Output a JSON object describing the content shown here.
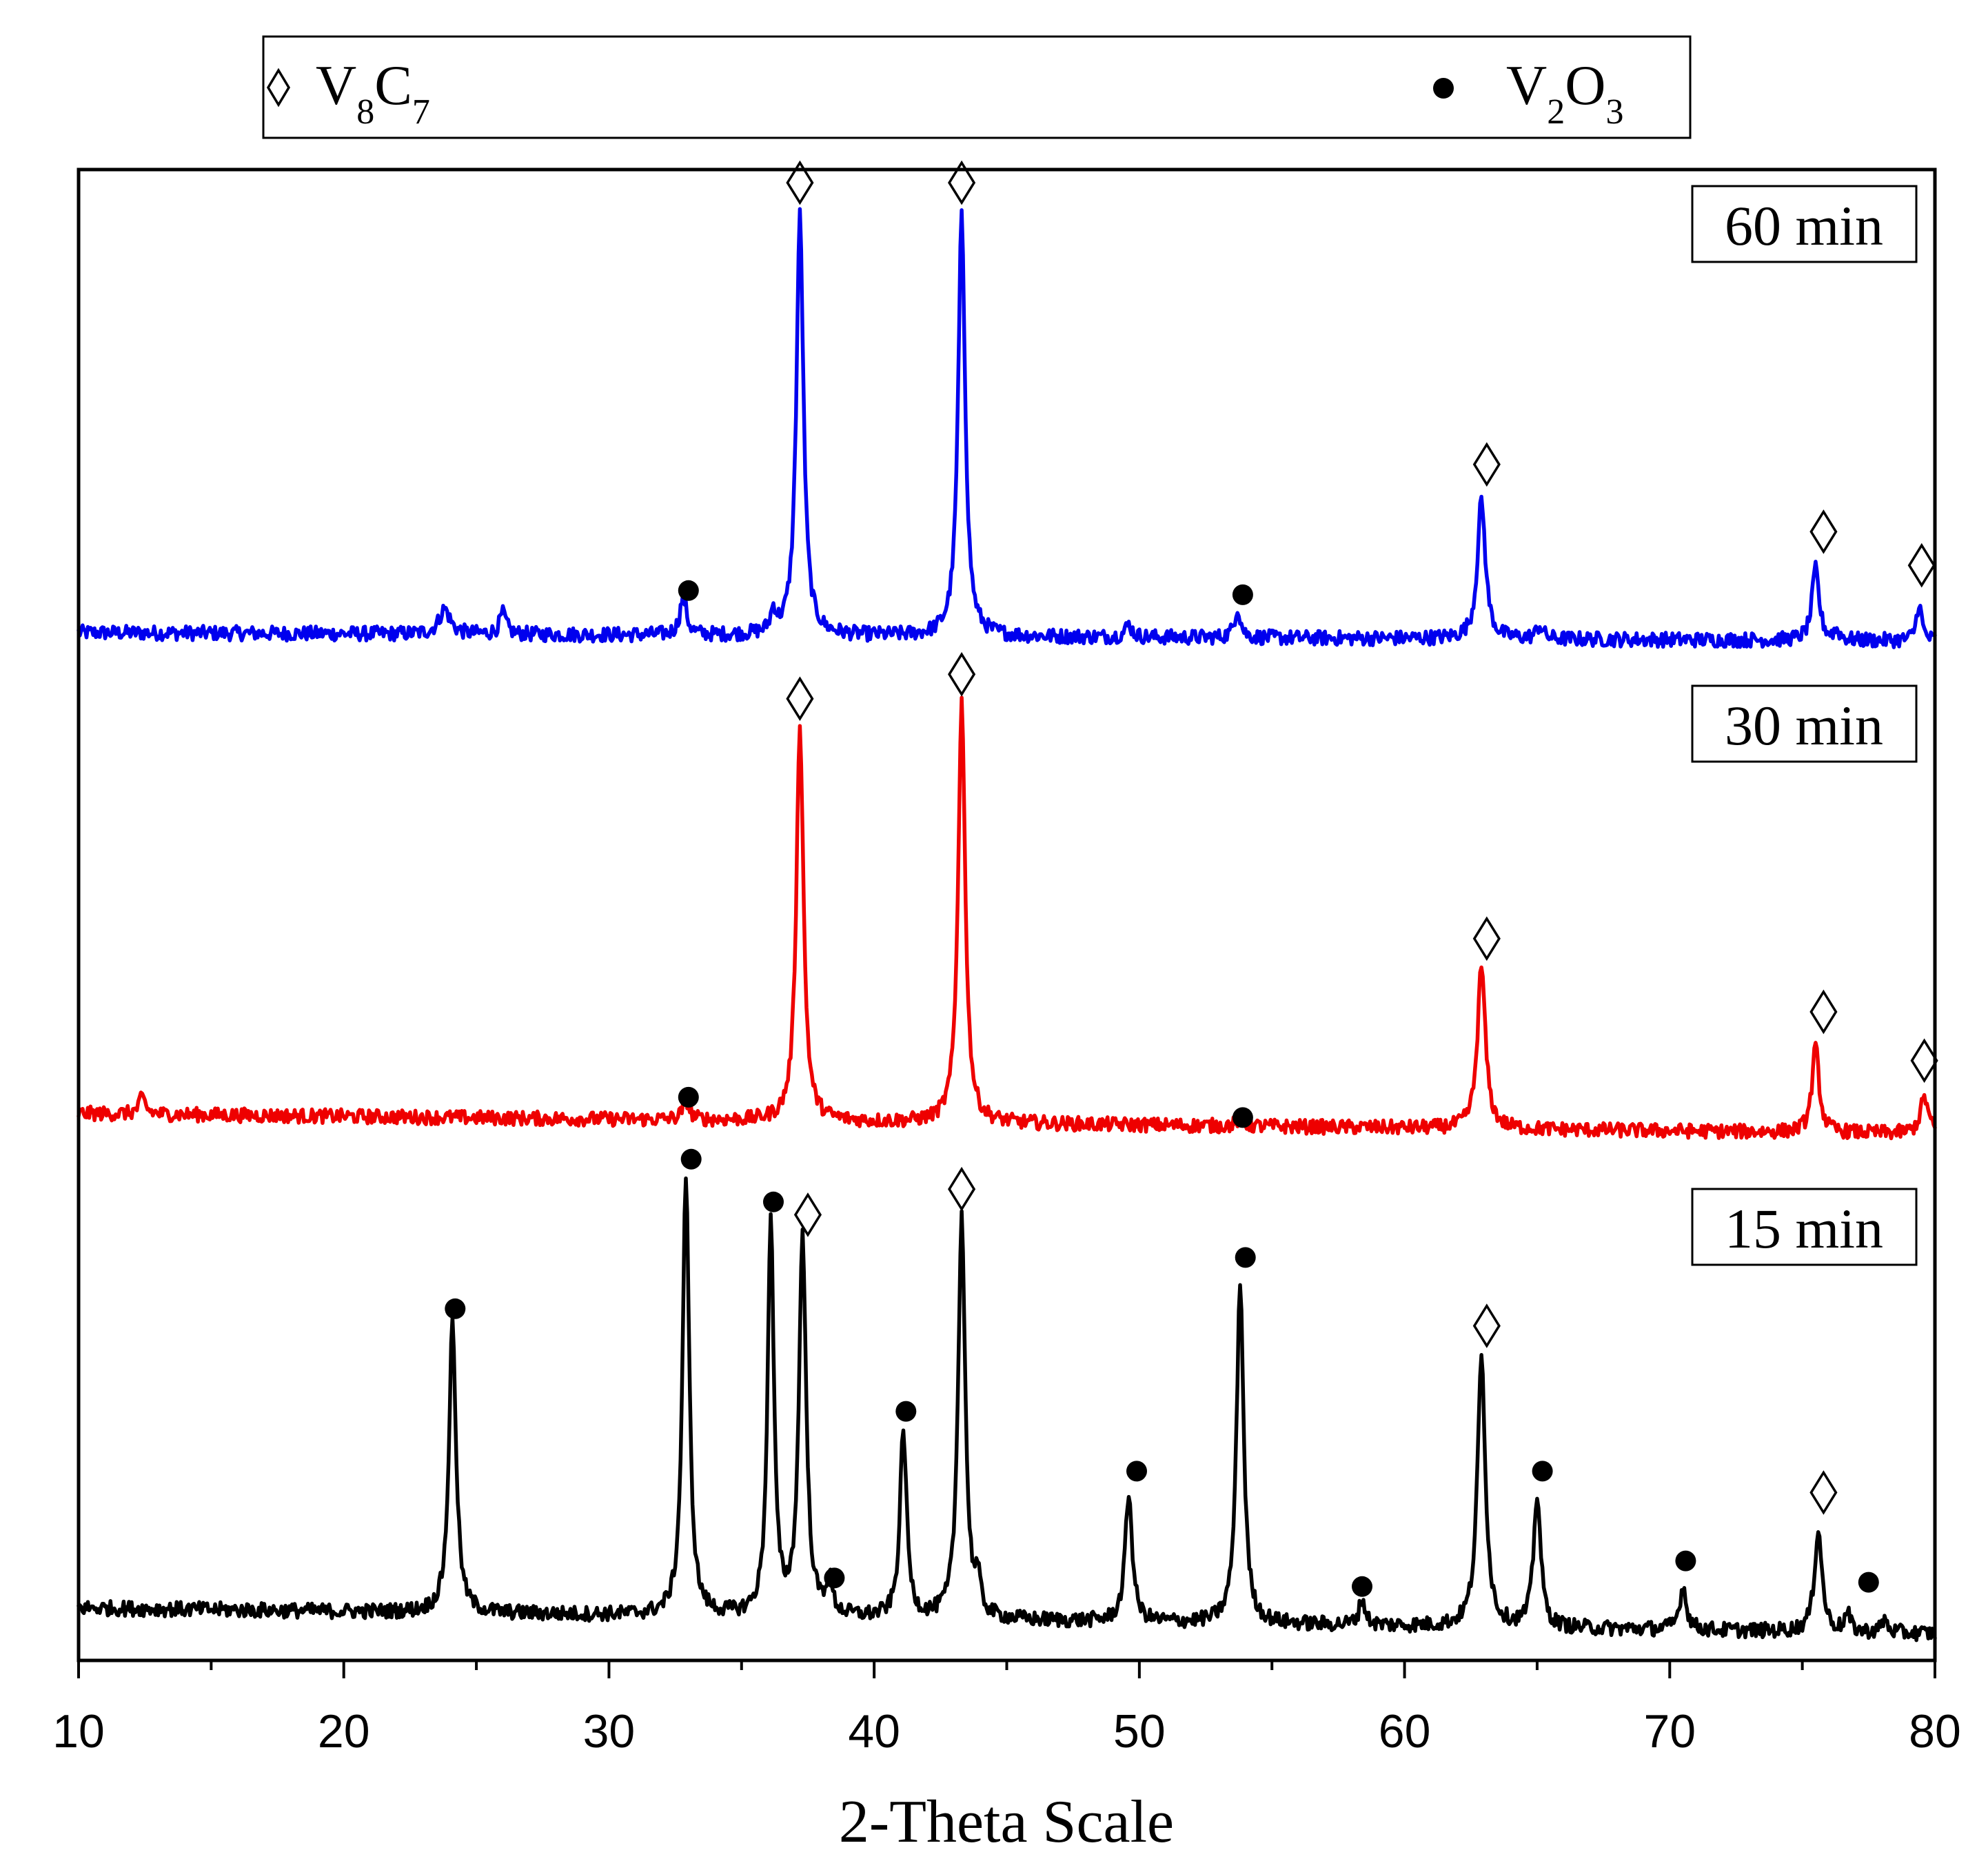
{
  "chart_data": {
    "type": "line",
    "xlabel": "2-Theta Scale",
    "ylabel": "",
    "xlim": [
      10,
      80
    ],
    "x_ticks": [
      10,
      20,
      30,
      40,
      50,
      60,
      70,
      80
    ],
    "x_tick_labels": [
      "10",
      "20",
      "30",
      "40",
      "50",
      "60",
      "70",
      "80"
    ],
    "y_ticks_shown": false,
    "legend": {
      "placement": "top",
      "entries": [
        {
          "marker": "open-diamond",
          "label": "V8C7",
          "text": "V",
          "sub1": "8",
          "text2": "C",
          "sub2": "7"
        },
        {
          "marker": "filled-circle",
          "label": "V2O3",
          "text": "V",
          "sub1": "2",
          "text2": "O",
          "sub2": "3"
        }
      ]
    },
    "series": [
      {
        "name": "60 min",
        "label": "60 min",
        "color": "#0000ee",
        "baseline_start": 0.6,
        "baseline_end": 0.58,
        "peaks": [
          {
            "x": 23.8,
            "h": 0.06,
            "w": 0.25
          },
          {
            "x": 26.0,
            "h": 0.05,
            "w": 0.15
          },
          {
            "x": 32.8,
            "h": 0.09,
            "w": 0.15
          },
          {
            "x": 36.2,
            "h": 0.05,
            "w": 0.12
          },
          {
            "x": 37.2,
            "h": 1.0,
            "w": 0.16
          },
          {
            "x": 43.3,
            "h": 1.0,
            "w": 0.16
          },
          {
            "x": 49.6,
            "h": 0.03,
            "w": 0.15
          },
          {
            "x": 53.7,
            "h": 0.07,
            "w": 0.14
          },
          {
            "x": 62.9,
            "h": 0.33,
            "w": 0.18
          },
          {
            "x": 65.1,
            "h": 0.03,
            "w": 0.15
          },
          {
            "x": 75.5,
            "h": 0.17,
            "w": 0.16
          },
          {
            "x": 76.3,
            "h": 0.02,
            "w": 0.14
          },
          {
            "x": 79.4,
            "h": 0.09,
            "w": 0.12
          }
        ],
        "markers": [
          {
            "type": "dot",
            "x": 33.0,
            "y": 0.12
          },
          {
            "type": "diamond",
            "x": 37.2,
            "y": 1.09
          },
          {
            "type": "diamond",
            "x": 43.3,
            "y": 1.09
          },
          {
            "type": "dot",
            "x": 53.9,
            "y": 0.11
          },
          {
            "type": "diamond",
            "x": 63.1,
            "y": 0.42
          },
          {
            "type": "diamond",
            "x": 75.8,
            "y": 0.26
          },
          {
            "type": "diamond",
            "x": 79.5,
            "y": 0.18
          }
        ]
      },
      {
        "name": "30 min",
        "label": "30 min",
        "color": "#ee0000",
        "baseline_start": 0.63,
        "baseline_end": 0.58,
        "peaks": [
          {
            "x": 12.4,
            "h": 0.04,
            "w": 0.15
          },
          {
            "x": 32.9,
            "h": 0.05,
            "w": 0.14
          },
          {
            "x": 37.2,
            "h": 0.98,
            "w": 0.16
          },
          {
            "x": 43.3,
            "h": 1.04,
            "w": 0.16
          },
          {
            "x": 53.8,
            "h": 0.02,
            "w": 0.14
          },
          {
            "x": 62.9,
            "h": 0.4,
            "w": 0.18
          },
          {
            "x": 75.5,
            "h": 0.21,
            "w": 0.16
          },
          {
            "x": 79.6,
            "h": 0.09,
            "w": 0.18
          }
        ],
        "markers": [
          {
            "type": "dot",
            "x": 33.0,
            "y": 0.09
          },
          {
            "type": "diamond",
            "x": 37.2,
            "y": 1.07
          },
          {
            "type": "diamond",
            "x": 43.3,
            "y": 1.13
          },
          {
            "type": "dot",
            "x": 53.9,
            "y": 0.04
          },
          {
            "type": "diamond",
            "x": 63.1,
            "y": 0.48
          },
          {
            "type": "diamond",
            "x": 75.8,
            "y": 0.3
          },
          {
            "type": "diamond",
            "x": 79.6,
            "y": 0.18
          }
        ]
      },
      {
        "name": "15 min",
        "label": "15 min",
        "color": "#000000",
        "baseline_start": 0.58,
        "baseline_end": 0.52,
        "peaks": [
          {
            "x": 24.1,
            "h": 0.68,
            "w": 0.16
          },
          {
            "x": 32.9,
            "h": 1.03,
            "w": 0.15
          },
          {
            "x": 36.1,
            "h": 0.93,
            "w": 0.14
          },
          {
            "x": 37.3,
            "h": 0.89,
            "w": 0.16
          },
          {
            "x": 38.3,
            "h": 0.08,
            "w": 0.14
          },
          {
            "x": 41.1,
            "h": 0.44,
            "w": 0.15
          },
          {
            "x": 43.3,
            "h": 0.95,
            "w": 0.16
          },
          {
            "x": 43.9,
            "h": 0.07,
            "w": 0.12
          },
          {
            "x": 49.6,
            "h": 0.3,
            "w": 0.16
          },
          {
            "x": 53.8,
            "h": 0.8,
            "w": 0.16
          },
          {
            "x": 58.4,
            "h": 0.06,
            "w": 0.14
          },
          {
            "x": 62.9,
            "h": 0.63,
            "w": 0.18
          },
          {
            "x": 65.0,
            "h": 0.31,
            "w": 0.16
          },
          {
            "x": 70.5,
            "h": 0.1,
            "w": 0.16
          },
          {
            "x": 75.6,
            "h": 0.24,
            "w": 0.17
          },
          {
            "x": 76.7,
            "h": 0.04,
            "w": 0.13
          },
          {
            "x": 78.1,
            "h": 0.03,
            "w": 0.13
          }
        ],
        "markers": [
          {
            "type": "dot",
            "x": 24.2,
            "y": 0.76
          },
          {
            "type": "dot",
            "x": 33.1,
            "y": 1.11
          },
          {
            "type": "dot",
            "x": 36.2,
            "y": 1.01
          },
          {
            "type": "diamond",
            "x": 37.5,
            "y": 0.98
          },
          {
            "type": "dot",
            "x": 38.5,
            "y": 0.13
          },
          {
            "type": "dot",
            "x": 41.2,
            "y": 0.52
          },
          {
            "type": "diamond",
            "x": 43.3,
            "y": 1.04
          },
          {
            "type": "dot",
            "x": 49.9,
            "y": 0.38
          },
          {
            "type": "dot",
            "x": 54.0,
            "y": 0.88
          },
          {
            "type": "dot",
            "x": 58.4,
            "y": 0.11
          },
          {
            "type": "diamond",
            "x": 63.1,
            "y": 0.72
          },
          {
            "type": "dot",
            "x": 65.2,
            "y": 0.38
          },
          {
            "type": "dot",
            "x": 70.6,
            "y": 0.17
          },
          {
            "type": "diamond",
            "x": 75.8,
            "y": 0.33
          },
          {
            "type": "dot",
            "x": 77.5,
            "y": 0.12
          }
        ]
      }
    ]
  }
}
